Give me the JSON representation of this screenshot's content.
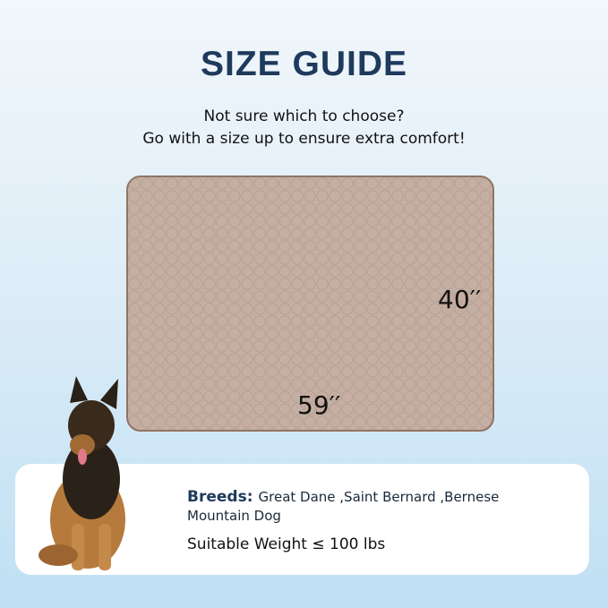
{
  "title": "SIZE GUIDE",
  "subtitle": [
    "Not sure which to choose?",
    "Go with a size up to ensure extra comfort!"
  ],
  "mat": {
    "width_label": "59′′",
    "height_label": "40′′",
    "color": "#c5afa2"
  },
  "info": {
    "breeds_label": "Breeds:",
    "breeds_value": "Great Dane ,Saint Bernard ,Bernese Mountain Dog",
    "weight": "Suitable Weight ≤ 100 lbs"
  }
}
